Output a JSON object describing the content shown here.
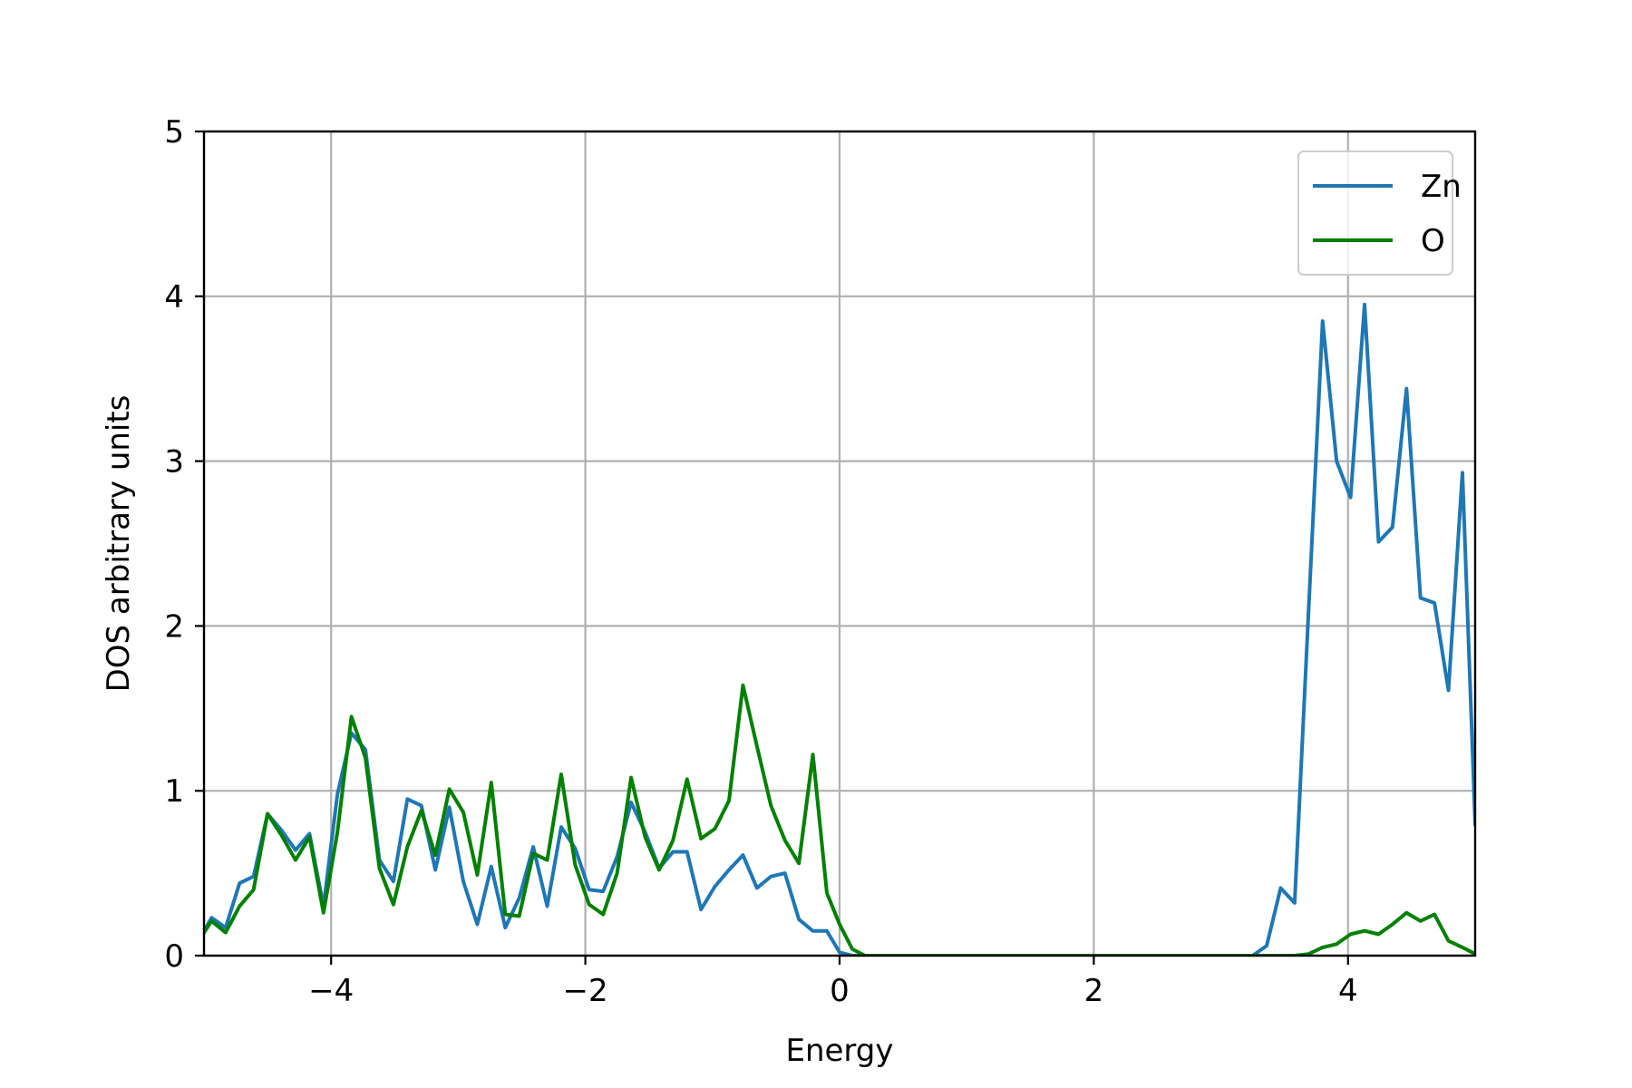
{
  "chart_data": {
    "type": "line",
    "xlabel": "Energy",
    "ylabel": "DOS arbitrary units",
    "xlim": [
      -5,
      5
    ],
    "ylim": [
      0,
      5
    ],
    "xticks": [
      -4,
      -2,
      0,
      2,
      4
    ],
    "xtick_labels": [
      "−4",
      "−2",
      "0",
      "2",
      "4"
    ],
    "yticks": [
      0,
      1,
      2,
      3,
      4,
      5
    ],
    "ytick_labels": [
      "0",
      "1",
      "2",
      "3",
      "4",
      "5"
    ],
    "grid": true,
    "legend": {
      "placement": "top-right"
    },
    "series": [
      {
        "name": "Zn",
        "color": "#1f77b4",
        "x": [
          -5.0,
          -4.94,
          -4.83,
          -4.72,
          -4.61,
          -4.5,
          -4.39,
          -4.28,
          -4.17,
          -4.06,
          -3.95,
          -3.84,
          -3.73,
          -3.62,
          -3.51,
          -3.4,
          -3.29,
          -3.18,
          -3.07,
          -2.96,
          -2.85,
          -2.74,
          -2.63,
          -2.52,
          -2.41,
          -2.3,
          -2.19,
          -2.08,
          -1.97,
          -1.86,
          -1.75,
          -1.64,
          -1.53,
          -1.42,
          -1.31,
          -1.2,
          -1.09,
          -0.98,
          -0.87,
          -0.76,
          -0.65,
          -0.54,
          -0.43,
          -0.32,
          -0.21,
          -0.1,
          0.0,
          0.1,
          0.2,
          0.5,
          1.0,
          1.5,
          2.0,
          2.5,
          3.0,
          3.25,
          3.36,
          3.47,
          3.58,
          3.69,
          3.8,
          3.91,
          4.02,
          4.13,
          4.24,
          4.35,
          4.46,
          4.57,
          4.68,
          4.79,
          4.9,
          5.0
        ],
        "values": [
          0.15,
          0.23,
          0.17,
          0.44,
          0.48,
          0.86,
          0.76,
          0.64,
          0.74,
          0.3,
          0.98,
          1.35,
          1.25,
          0.58,
          0.45,
          0.95,
          0.91,
          0.52,
          0.9,
          0.45,
          0.19,
          0.54,
          0.17,
          0.35,
          0.66,
          0.3,
          0.78,
          0.65,
          0.4,
          0.39,
          0.6,
          0.93,
          0.75,
          0.53,
          0.63,
          0.63,
          0.28,
          0.42,
          0.52,
          0.61,
          0.41,
          0.48,
          0.5,
          0.22,
          0.15,
          0.15,
          0.02,
          0.0,
          0.0,
          0.0,
          0.0,
          0.0,
          0.0,
          0.0,
          0.0,
          0.0,
          0.06,
          0.41,
          0.32,
          2.1,
          3.85,
          3.0,
          2.78,
          3.95,
          2.51,
          2.6,
          3.44,
          2.17,
          2.14,
          1.61,
          2.93,
          0.8
        ]
      },
      {
        "name": "O",
        "color": "#008000",
        "x": [
          -5.0,
          -4.94,
          -4.83,
          -4.72,
          -4.61,
          -4.5,
          -4.39,
          -4.28,
          -4.17,
          -4.06,
          -3.95,
          -3.84,
          -3.73,
          -3.62,
          -3.51,
          -3.4,
          -3.29,
          -3.18,
          -3.07,
          -2.96,
          -2.85,
          -2.74,
          -2.63,
          -2.52,
          -2.41,
          -2.3,
          -2.19,
          -2.08,
          -1.97,
          -1.86,
          -1.75,
          -1.64,
          -1.53,
          -1.42,
          -1.31,
          -1.2,
          -1.09,
          -0.98,
          -0.87,
          -0.76,
          -0.65,
          -0.54,
          -0.43,
          -0.32,
          -0.21,
          -0.1,
          0.0,
          0.1,
          0.2,
          0.5,
          1.0,
          1.5,
          2.0,
          2.5,
          3.0,
          3.5,
          3.58,
          3.69,
          3.8,
          3.91,
          4.02,
          4.13,
          4.24,
          4.35,
          4.46,
          4.57,
          4.68,
          4.79,
          4.9,
          5.0
        ],
        "values": [
          0.14,
          0.21,
          0.14,
          0.3,
          0.4,
          0.86,
          0.73,
          0.58,
          0.72,
          0.26,
          0.75,
          1.45,
          1.2,
          0.53,
          0.31,
          0.66,
          0.88,
          0.61,
          1.01,
          0.87,
          0.49,
          1.05,
          0.25,
          0.24,
          0.62,
          0.58,
          1.1,
          0.55,
          0.31,
          0.25,
          0.5,
          1.08,
          0.72,
          0.52,
          0.7,
          1.07,
          0.71,
          0.77,
          0.94,
          1.64,
          1.27,
          0.91,
          0.7,
          0.56,
          1.22,
          0.38,
          0.19,
          0.04,
          0.0,
          0.0,
          0.0,
          0.0,
          0.0,
          0.0,
          0.0,
          0.0,
          0.0,
          0.01,
          0.05,
          0.07,
          0.13,
          0.15,
          0.13,
          0.19,
          0.26,
          0.21,
          0.25,
          0.09,
          0.05,
          0.01
        ]
      }
    ]
  }
}
